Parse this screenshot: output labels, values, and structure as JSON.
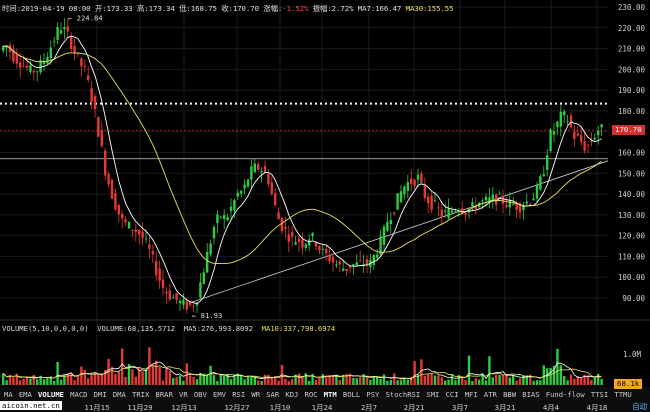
{
  "info_bar": {
    "time_label": "时间:",
    "time": "2019-04-19 08:00",
    "open_label": "开:",
    "open": "173.33",
    "high_label": "高:",
    "high": "173.34",
    "low_label": "低:",
    "low": "168.75",
    "close_label": "收:",
    "close": "170.70",
    "change_label": "涨幅:",
    "change": "-1.52%",
    "amplitude_label": "振幅:",
    "amplitude": "2.72%",
    "ma7_label": "MA7:",
    "ma7": "166.47",
    "ma30_label": "MA30:",
    "ma30": "155.55"
  },
  "price_axis": {
    "labels": [
      "230.00",
      "220.00",
      "210.00",
      "200.00",
      "190.00",
      "180.00",
      "170.00",
      "160.00",
      "150.00",
      "140.00",
      "130.00",
      "120.00",
      "110.00",
      "100.00",
      "90.00"
    ],
    "current_price": "170.70",
    "current_price_color": "#d32f2f"
  },
  "annotations": {
    "high_marker": "224.84",
    "low_marker": "81.93"
  },
  "volume_info": {
    "params": "VOLUME(5,10,0,0,0,0)",
    "volume_label": "VOLUME:",
    "volume": "68,135.5712",
    "ma5_label": "MA5:",
    "ma5": "276,993.8092",
    "ma10_label": "MA10:",
    "ma10": "337,798.6974"
  },
  "volume_axis": {
    "label_1m": "1.0M",
    "current_volume": "68.1k",
    "current_volume_color": "#f5a623"
  },
  "date_axis": [
    "11月15",
    "11月29",
    "12月13",
    "12月27",
    "1月10",
    "1月24",
    "2月7",
    "2月21",
    "3月7",
    "3月21",
    "4月4",
    "4月18"
  ],
  "indicator_tabs": [
    "MA",
    "EMA",
    "VOLUME",
    "MACD",
    "DMI",
    "DMA",
    "TRIX",
    "BRAR",
    "VR",
    "OBV",
    "EMV",
    "RSI",
    "WR",
    "SAR",
    "KDJ",
    "ROC",
    "MTM",
    "BOLL",
    "PSY",
    "StochRSI",
    "SMI",
    "CCI",
    "MFI",
    "ATR",
    "BBW",
    "BIAS",
    "Fund-flow",
    "TTSI",
    "TTMU"
  ],
  "active_tab": "VOLUME",
  "watermark": "aicoin.net.cn",
  "zoom_button": "自动",
  "colors": {
    "up": "#2ecc40",
    "down": "#e53935",
    "ma7": "#ffffff",
    "ma30": "#e8e060"
  }
}
